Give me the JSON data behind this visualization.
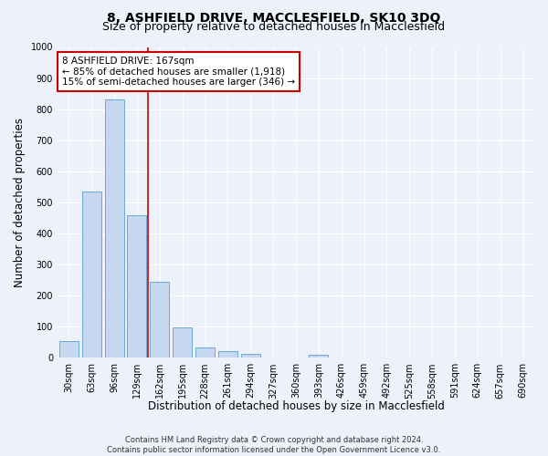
{
  "title": "8, ASHFIELD DRIVE, MACCLESFIELD, SK10 3DQ",
  "subtitle": "Size of property relative to detached houses in Macclesfield",
  "xlabel": "Distribution of detached houses by size in Macclesfield",
  "ylabel": "Number of detached properties",
  "footnote1": "Contains HM Land Registry data © Crown copyright and database right 2024.",
  "footnote2": "Contains public sector information licensed under the Open Government Licence v3.0.",
  "bar_labels": [
    "30sqm",
    "63sqm",
    "96sqm",
    "129sqm",
    "162sqm",
    "195sqm",
    "228sqm",
    "261sqm",
    "294sqm",
    "327sqm",
    "360sqm",
    "393sqm",
    "426sqm",
    "459sqm",
    "492sqm",
    "525sqm",
    "558sqm",
    "591sqm",
    "624sqm",
    "657sqm",
    "690sqm"
  ],
  "bar_values": [
    55,
    535,
    830,
    460,
    245,
    97,
    33,
    22,
    12,
    0,
    0,
    10,
    0,
    0,
    0,
    0,
    0,
    0,
    0,
    0,
    0
  ],
  "bar_color": "#c5d8f0",
  "bar_edge_color": "#6aaad4",
  "vline_index": 3.5,
  "annotation_text": "8 ASHFIELD DRIVE: 167sqm\n← 85% of detached houses are smaller (1,918)\n15% of semi-detached houses are larger (346) →",
  "annotation_box_color": "#ffffff",
  "annotation_box_edge_color": "#cc0000",
  "vline_color": "#cc0000",
  "ylim": [
    0,
    1000
  ],
  "yticks": [
    0,
    100,
    200,
    300,
    400,
    500,
    600,
    700,
    800,
    900,
    1000
  ],
  "background_color": "#edf1fa",
  "plot_bg_color": "#edf1fa",
  "grid_color": "#ffffff",
  "title_fontsize": 10,
  "subtitle_fontsize": 9,
  "axis_label_fontsize": 8.5,
  "tick_fontsize": 7,
  "annotation_fontsize": 7.5,
  "footnote_fontsize": 6
}
